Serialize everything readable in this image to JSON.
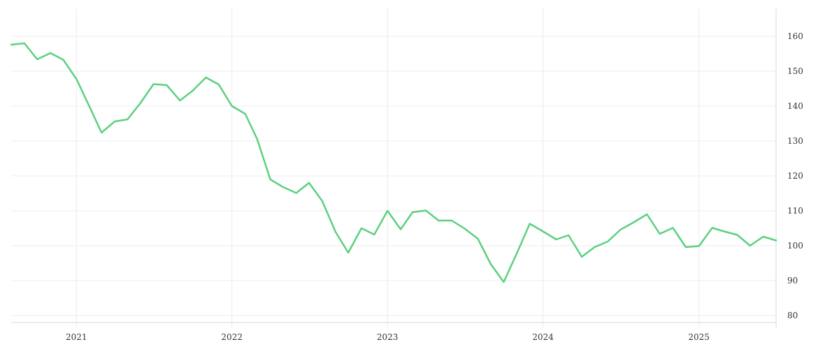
{
  "chart_data": {
    "type": "line",
    "title": "",
    "xlabel": "",
    "ylabel": "",
    "ylim": [
      78,
      168
    ],
    "xlim": [
      "2020-08-01",
      "2025-07-01"
    ],
    "y_ticks": [
      80,
      90,
      100,
      110,
      120,
      130,
      140,
      150,
      160
    ],
    "x_ticks": [
      {
        "date": "2021-01-01",
        "label": "2021"
      },
      {
        "date": "2022-01-01",
        "label": "2022"
      },
      {
        "date": "2023-01-01",
        "label": "2023"
      },
      {
        "date": "2024-01-01",
        "label": "2024"
      },
      {
        "date": "2025-01-01",
        "label": "2025"
      }
    ],
    "y_axis_position": "right",
    "grid": true,
    "series": [
      {
        "color": "#5bd17f",
        "points": [
          [
            "2020-08-01",
            157.6
          ],
          [
            "2020-09-01",
            158.0
          ],
          [
            "2020-10-01",
            153.4
          ],
          [
            "2020-11-01",
            155.2
          ],
          [
            "2020-12-01",
            153.3
          ],
          [
            "2021-01-01",
            147.8
          ],
          [
            "2021-02-01",
            139.8
          ],
          [
            "2021-03-01",
            132.4
          ],
          [
            "2021-04-01",
            135.6
          ],
          [
            "2021-05-01",
            136.2
          ],
          [
            "2021-06-01",
            141.0
          ],
          [
            "2021-07-01",
            146.3
          ],
          [
            "2021-08-01",
            146.0
          ],
          [
            "2021-09-01",
            141.6
          ],
          [
            "2021-10-01",
            144.4
          ],
          [
            "2021-11-01",
            148.2
          ],
          [
            "2021-12-01",
            146.2
          ],
          [
            "2022-01-01",
            140.0
          ],
          [
            "2022-02-01",
            137.8
          ],
          [
            "2022-03-01",
            130.6
          ],
          [
            "2022-04-01",
            119.0
          ],
          [
            "2022-05-01",
            116.8
          ],
          [
            "2022-06-01",
            115.1
          ],
          [
            "2022-07-01",
            118.0
          ],
          [
            "2022-08-01",
            112.8
          ],
          [
            "2022-09-01",
            104.0
          ],
          [
            "2022-10-01",
            98.0
          ],
          [
            "2022-11-01",
            105.0
          ],
          [
            "2022-12-01",
            103.2
          ],
          [
            "2023-01-01",
            110.0
          ],
          [
            "2023-02-01",
            104.7
          ],
          [
            "2023-03-01",
            109.6
          ],
          [
            "2023-04-01",
            110.1
          ],
          [
            "2023-05-01",
            107.2
          ],
          [
            "2023-06-01",
            107.2
          ],
          [
            "2023-07-01",
            104.9
          ],
          [
            "2023-08-01",
            102.0
          ],
          [
            "2023-09-01",
            94.6
          ],
          [
            "2023-10-01",
            89.6
          ],
          [
            "2023-11-01",
            97.9
          ],
          [
            "2023-12-01",
            106.3
          ],
          [
            "2024-01-01",
            104.1
          ],
          [
            "2024-02-01",
            101.8
          ],
          [
            "2024-03-01",
            103.0
          ],
          [
            "2024-04-01",
            96.8
          ],
          [
            "2024-05-01",
            99.6
          ],
          [
            "2024-06-01",
            101.2
          ],
          [
            "2024-07-01",
            104.6
          ],
          [
            "2024-08-01",
            106.7
          ],
          [
            "2024-09-01",
            109.0
          ],
          [
            "2024-10-01",
            103.4
          ],
          [
            "2024-11-01",
            105.1
          ],
          [
            "2024-12-01",
            99.6
          ],
          [
            "2025-01-01",
            99.9
          ],
          [
            "2025-02-01",
            105.1
          ],
          [
            "2025-03-01",
            104.1
          ],
          [
            "2025-04-01",
            103.1
          ],
          [
            "2025-05-01",
            100.0
          ],
          [
            "2025-06-01",
            102.6
          ],
          [
            "2025-07-01",
            101.5
          ]
        ]
      }
    ]
  }
}
